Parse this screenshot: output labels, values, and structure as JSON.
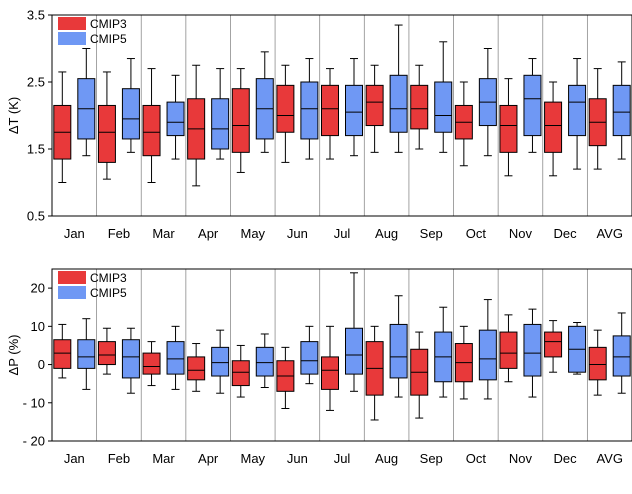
{
  "colors": {
    "CMIP3": "#e8393a",
    "CMIP5": "#6f98f4",
    "frame": "#000000",
    "divider": "#8c8c8c"
  },
  "chart_data": [
    {
      "type": "boxplot",
      "ylabel": "ΔT (K)",
      "categories": [
        "Jan",
        "Feb",
        "Mar",
        "Apr",
        "May",
        "Jun",
        "Jul",
        "Aug",
        "Sep",
        "Oct",
        "Nov",
        "Dec",
        "AVG"
      ],
      "ylim": [
        0.5,
        3.5
      ],
      "yticks": [
        "0.5",
        "1.5",
        "2.5",
        "3.5"
      ],
      "legend": [
        "CMIP3",
        "CMIP5"
      ],
      "legend_position": "top-left",
      "series": [
        {
          "name": "CMIP3",
          "boxes": [
            [
              1.0,
              1.35,
              1.75,
              2.15,
              2.65
            ],
            [
              1.05,
              1.3,
              1.75,
              2.15,
              2.65
            ],
            [
              1.0,
              1.4,
              1.75,
              2.15,
              2.7
            ],
            [
              0.95,
              1.35,
              1.8,
              2.25,
              2.75
            ],
            [
              1.15,
              1.45,
              1.85,
              2.4,
              2.7
            ],
            [
              1.3,
              1.75,
              2.0,
              2.45,
              2.75
            ],
            [
              1.35,
              1.7,
              2.1,
              2.45,
              2.7
            ],
            [
              1.45,
              1.85,
              2.2,
              2.45,
              2.75
            ],
            [
              1.5,
              1.8,
              2.1,
              2.45,
              2.75
            ],
            [
              1.25,
              1.65,
              1.9,
              2.15,
              2.5
            ],
            [
              1.1,
              1.45,
              1.85,
              2.15,
              2.55
            ],
            [
              1.1,
              1.45,
              1.85,
              2.2,
              2.5
            ],
            [
              1.2,
              1.55,
              1.9,
              2.25,
              2.7
            ]
          ]
        },
        {
          "name": "CMIP5",
          "boxes": [
            [
              1.4,
              1.65,
              2.1,
              2.55,
              3.0
            ],
            [
              1.45,
              1.65,
              1.95,
              2.4,
              2.85
            ],
            [
              1.35,
              1.7,
              1.9,
              2.2,
              2.6
            ],
            [
              1.35,
              1.5,
              1.8,
              2.25,
              2.7
            ],
            [
              1.45,
              1.65,
              2.1,
              2.55,
              2.95
            ],
            [
              1.35,
              1.65,
              2.1,
              2.5,
              2.85
            ],
            [
              1.4,
              1.7,
              2.05,
              2.45,
              2.85
            ],
            [
              1.45,
              1.75,
              2.1,
              2.6,
              3.35
            ],
            [
              1.45,
              1.75,
              2.0,
              2.5,
              3.1
            ],
            [
              1.4,
              1.85,
              2.2,
              2.55,
              3.0
            ],
            [
              1.45,
              1.7,
              2.25,
              2.6,
              2.85
            ],
            [
              1.2,
              1.7,
              2.2,
              2.45,
              2.85
            ],
            [
              1.35,
              1.7,
              2.05,
              2.45,
              2.8
            ]
          ]
        }
      ]
    },
    {
      "type": "boxplot",
      "ylabel": "ΔP (%)",
      "categories": [
        "Jan",
        "Feb",
        "Mar",
        "Apr",
        "May",
        "Jun",
        "Jul",
        "Aug",
        "Sep",
        "Oct",
        "Nov",
        "Dec",
        "AVG"
      ],
      "ylim": [
        -20,
        25
      ],
      "yticks": [
        "- 20",
        "- 10",
        "0",
        "10",
        "20"
      ],
      "legend": [
        "CMIP3",
        "CMIP5"
      ],
      "legend_position": "top-left",
      "series": [
        {
          "name": "CMIP3",
          "boxes": [
            [
              -3.5,
              -1,
              3,
              6.5,
              10.5
            ],
            [
              -2.5,
              0,
              2.5,
              6,
              9.5
            ],
            [
              -5.5,
              -2.5,
              -0.5,
              3,
              6
            ],
            [
              -7,
              -4,
              -1.5,
              2,
              5.5
            ],
            [
              -8.5,
              -5.5,
              -2,
              1,
              5
            ],
            [
              -11.5,
              -7,
              -3,
              1,
              4.5
            ],
            [
              -12,
              -6.5,
              -1.5,
              2,
              10
            ],
            [
              -14.5,
              -8,
              -1,
              6,
              10
            ],
            [
              -14,
              -8,
              -2,
              4,
              8.5
            ],
            [
              -9,
              -4.5,
              0.5,
              5.5,
              10
            ],
            [
              -4.5,
              -1,
              3,
              8.5,
              13
            ],
            [
              -2,
              2,
              6,
              8.5,
              11.5
            ],
            [
              -8,
              -4,
              0,
              4.5,
              9
            ]
          ]
        },
        {
          "name": "CMIP5",
          "boxes": [
            [
              -6.5,
              -1,
              2,
              6.5,
              12
            ],
            [
              -7.5,
              -3.5,
              2,
              6.5,
              9.5
            ],
            [
              -6.5,
              -2.5,
              1.5,
              6,
              10
            ],
            [
              -7.5,
              -3,
              0.5,
              4.5,
              9
            ],
            [
              -6,
              -3,
              0.5,
              4.5,
              8
            ],
            [
              -5,
              -2.5,
              1,
              6,
              10
            ],
            [
              -7,
              -2.5,
              2.5,
              9.5,
              24
            ],
            [
              -8.5,
              -3.5,
              2,
              10.5,
              18
            ],
            [
              -8.5,
              -4.5,
              2,
              8.5,
              15
            ],
            [
              -9,
              -4,
              1.5,
              9,
              17
            ],
            [
              -8.5,
              -3,
              3,
              10.5,
              14.5
            ],
            [
              -2.5,
              -2,
              4,
              10,
              11
            ],
            [
              -7.5,
              -3,
              2,
              7.5,
              13.5
            ]
          ]
        }
      ]
    }
  ]
}
